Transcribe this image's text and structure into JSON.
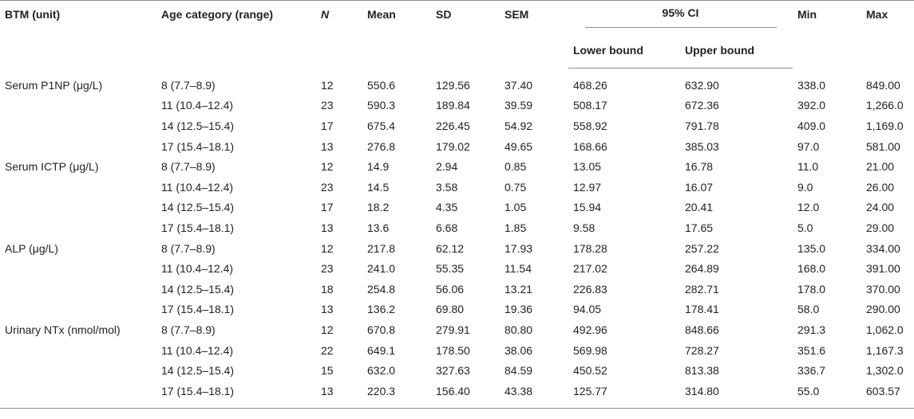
{
  "headers": {
    "btm": "BTM (unit)",
    "age": "Age category (range)",
    "n": "N",
    "mean": "Mean",
    "sd": "SD",
    "sem": "SEM",
    "ci": "95% CI",
    "lower": "Lower bound",
    "upper": "Upper bound",
    "min": "Min",
    "max": "Max"
  },
  "rows": [
    {
      "btm": "Serum P1NP (μg/L)",
      "age": "8 (7.7–8.9)",
      "n": "12",
      "mean": "550.6",
      "sd": "129.56",
      "sem": "37.40",
      "lower": "468.26",
      "upper": "632.90",
      "min": "338.0",
      "max": "849.00"
    },
    {
      "btm": "",
      "age": "11 (10.4–12.4)",
      "n": "23",
      "mean": "590.3",
      "sd": "189.84",
      "sem": "39.59",
      "lower": "508.17",
      "upper": "672.36",
      "min": "392.0",
      "max": "1,266.0"
    },
    {
      "btm": "",
      "age": "14 (12.5–15.4)",
      "n": "17",
      "mean": "675.4",
      "sd": "226.45",
      "sem": "54.92",
      "lower": "558.92",
      "upper": "791.78",
      "min": "409.0",
      "max": "1,169.0"
    },
    {
      "btm": "",
      "age": "17 (15.4–18.1)",
      "n": "13",
      "mean": "276.8",
      "sd": "179.02",
      "sem": "49.65",
      "lower": "168.66",
      "upper": "385.03",
      "min": "97.0",
      "max": "581.00"
    },
    {
      "btm": "Serum ICTP (μg/L)",
      "age": "8 (7.7–8.9)",
      "n": "12",
      "mean": "14.9",
      "sd": "2.94",
      "sem": "0.85",
      "lower": "13.05",
      "upper": "16.78",
      "min": "11.0",
      "max": "21.00"
    },
    {
      "btm": "",
      "age": "11 (10.4–12.4)",
      "n": "23",
      "mean": "14.5",
      "sd": "3.58",
      "sem": "0.75",
      "lower": "12.97",
      "upper": "16.07",
      "min": "9.0",
      "max": "26.00"
    },
    {
      "btm": "",
      "age": "14 (12.5–15.4)",
      "n": "17",
      "mean": "18.2",
      "sd": "4.35",
      "sem": "1.05",
      "lower": "15.94",
      "upper": "20.41",
      "min": "12.0",
      "max": "24.00"
    },
    {
      "btm": "",
      "age": "17 (15.4–18.1)",
      "n": "13",
      "mean": "13.6",
      "sd": "6.68",
      "sem": "1.85",
      "lower": "9.58",
      "upper": "17.65",
      "min": "5.0",
      "max": "29.00"
    },
    {
      "btm": "ALP (μg/L)",
      "age": "8 (7.7–8.9)",
      "n": "12",
      "mean": "217.8",
      "sd": "62.12",
      "sem": "17.93",
      "lower": "178.28",
      "upper": "257.22",
      "min": "135.0",
      "max": "334.00"
    },
    {
      "btm": "",
      "age": "11 (10.4–12.4)",
      "n": "23",
      "mean": "241.0",
      "sd": "55.35",
      "sem": "11.54",
      "lower": "217.02",
      "upper": "264.89",
      "min": "168.0",
      "max": "391.00"
    },
    {
      "btm": "",
      "age": "14 (12.5–15.4)",
      "n": "18",
      "mean": "254.8",
      "sd": "56.06",
      "sem": "13.21",
      "lower": "226.83",
      "upper": "282.71",
      "min": "178.0",
      "max": "370.00"
    },
    {
      "btm": "",
      "age": "17 (15.4–18.1)",
      "n": "13",
      "mean": "136.2",
      "sd": "69.80",
      "sem": "19.36",
      "lower": "94.05",
      "upper": "178.41",
      "min": "58.0",
      "max": "290.00"
    },
    {
      "btm": "Urinary NTx (nmol/mol)",
      "age": "8 (7.7–8.9)",
      "n": "12",
      "mean": "670.8",
      "sd": "279.91",
      "sem": "80.80",
      "lower": "492.96",
      "upper": "848.66",
      "min": "291.3",
      "max": "1,062.0"
    },
    {
      "btm": "",
      "age": "11 (10.4–12.4)",
      "n": "22",
      "mean": "649.1",
      "sd": "178.50",
      "sem": "38.06",
      "lower": "569.98",
      "upper": "728.27",
      "min": "351.6",
      "max": "1,167.3"
    },
    {
      "btm": "",
      "age": "14 (12.5–15.4)",
      "n": "15",
      "mean": "632.0",
      "sd": "327.63",
      "sem": "84.59",
      "lower": "450.52",
      "upper": "813.38",
      "min": "336.7",
      "max": "1,302.0"
    },
    {
      "btm": "",
      "age": "17 (15.4–18.1)",
      "n": "13",
      "mean": "220.3",
      "sd": "156.40",
      "sem": "43.38",
      "lower": "125.77",
      "upper": "314.80",
      "min": "55.0",
      "max": "603.57"
    }
  ]
}
